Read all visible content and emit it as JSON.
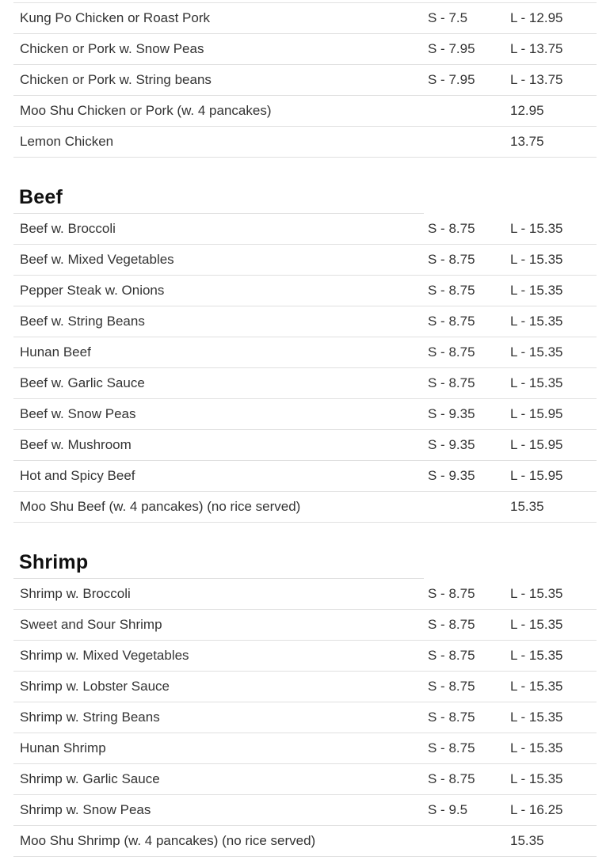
{
  "page": {
    "background_color": "#ffffff",
    "divider_color": "#e0e0e0",
    "text_color": "#333333",
    "heading_color": "#111111"
  },
  "menu": {
    "sections": [
      {
        "title": "",
        "items": [
          {
            "name": "Kung Po Chicken or Roast Pork",
            "small": "S - 7.5",
            "large": "L - 12.95"
          },
          {
            "name": "Chicken or Pork w. Snow Peas",
            "small": "S - 7.95",
            "large": "L - 13.75"
          },
          {
            "name": "Chicken or Pork w. String beans",
            "small": "S - 7.95",
            "large": "L - 13.75"
          },
          {
            "name": "Moo Shu Chicken or Pork (w. 4 pancakes)",
            "small": "",
            "large": "12.95"
          },
          {
            "name": "Lemon Chicken",
            "small": "",
            "large": "13.75"
          }
        ]
      },
      {
        "title": "Beef",
        "items": [
          {
            "name": "Beef w. Broccoli",
            "small": "S - 8.75",
            "large": "L - 15.35"
          },
          {
            "name": "Beef w. Mixed Vegetables",
            "small": "S - 8.75",
            "large": "L - 15.35"
          },
          {
            "name": "Pepper Steak w. Onions",
            "small": "S - 8.75",
            "large": "L - 15.35"
          },
          {
            "name": "Beef w. String Beans",
            "small": "S - 8.75",
            "large": "L - 15.35"
          },
          {
            "name": "Hunan Beef",
            "small": "S - 8.75",
            "large": "L - 15.35"
          },
          {
            "name": "Beef w. Garlic Sauce",
            "small": "S - 8.75",
            "large": "L - 15.35"
          },
          {
            "name": "Beef w. Snow Peas",
            "small": "S - 9.35",
            "large": "L - 15.95"
          },
          {
            "name": "Beef w. Mushroom",
            "small": "S - 9.35",
            "large": "L - 15.95"
          },
          {
            "name": "Hot and Spicy Beef",
            "small": "S - 9.35",
            "large": "L - 15.95"
          },
          {
            "name": "Moo Shu Beef (w. 4 pancakes) (no rice served)",
            "small": "",
            "large": "15.35"
          }
        ]
      },
      {
        "title": "Shrimp",
        "items": [
          {
            "name": "Shrimp w. Broccoli",
            "small": "S - 8.75",
            "large": "L - 15.35"
          },
          {
            "name": "Sweet and Sour Shrimp",
            "small": "S - 8.75",
            "large": "L - 15.35"
          },
          {
            "name": "Shrimp w. Mixed Vegetables",
            "small": "S - 8.75",
            "large": "L - 15.35"
          },
          {
            "name": "Shrimp w. Lobster Sauce",
            "small": "S - 8.75",
            "large": "L - 15.35"
          },
          {
            "name": "Shrimp w. String Beans",
            "small": "S - 8.75",
            "large": "L - 15.35"
          },
          {
            "name": "Hunan Shrimp",
            "small": "S - 8.75",
            "large": "L - 15.35"
          },
          {
            "name": "Shrimp w. Garlic Sauce",
            "small": "S - 8.75",
            "large": "L - 15.35"
          },
          {
            "name": "Shrimp w. Snow Peas",
            "small": "S - 9.5",
            "large": "L - 16.25"
          },
          {
            "name": "Moo Shu Shrimp (w. 4 pancakes) (no rice served)",
            "small": "",
            "large": "15.35"
          }
        ]
      }
    ]
  }
}
